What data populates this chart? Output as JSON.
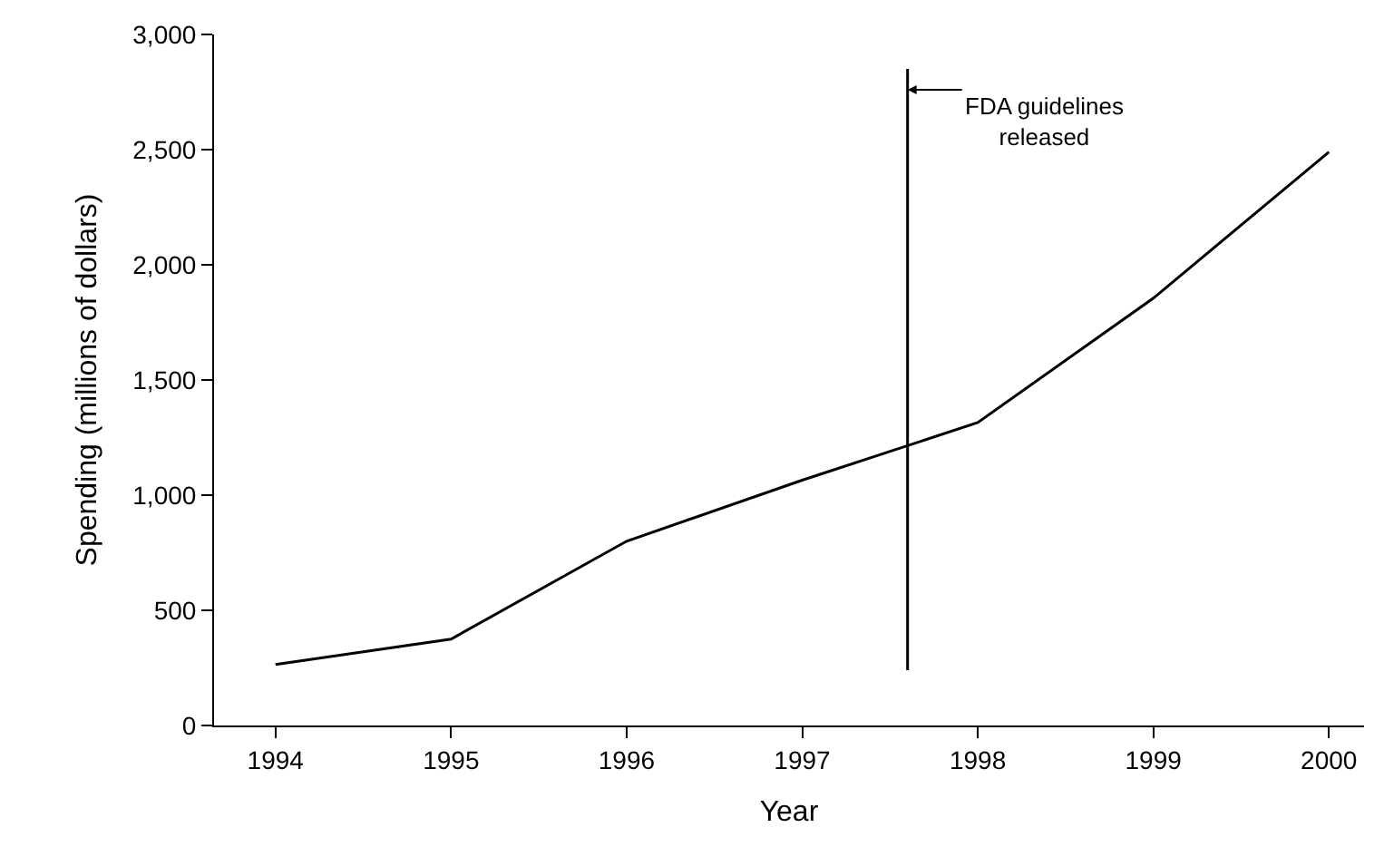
{
  "chart_data": {
    "type": "line",
    "xlabel": "Year",
    "ylabel": "Spending (millions of dollars)",
    "x": [
      1994,
      1995,
      1996,
      1997,
      1998,
      1999,
      2000
    ],
    "series": [
      {
        "color": "#000000",
        "values": [
          265,
          375,
          800,
          1065,
          1315,
          1855,
          2490
        ]
      }
    ],
    "xlim": [
      1993.65,
      2000.2
    ],
    "xticks": [
      1994,
      1995,
      1996,
      1997,
      1998,
      1999,
      2000
    ],
    "ylim": [
      0,
      3000
    ],
    "yticks": [
      {
        "value": 0,
        "label": "0"
      },
      {
        "value": 500,
        "label": "500"
      },
      {
        "value": 1000,
        "label": "1,000"
      },
      {
        "value": 1500,
        "label": "1,500"
      },
      {
        "value": 2000,
        "label": "2,000"
      },
      {
        "value": 2500,
        "label": "2,500"
      },
      {
        "value": 3000,
        "label": "3,000"
      }
    ],
    "ref_lines": [
      {
        "axis": "x",
        "value": 1997.6,
        "label": "FDA guidelines\nreleased",
        "color": "#000000"
      }
    ],
    "marker": "none",
    "line_style": "solid"
  }
}
